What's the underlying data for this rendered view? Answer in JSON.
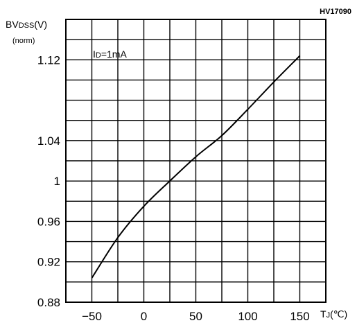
{
  "chart_data": {
    "type": "line",
    "code": "HV17090",
    "ylabel_main": "BV",
    "ylabel_sub": "DSS",
    "ylabel_unit": "(V)",
    "ylabel_norm": "(norm)",
    "xlabel_main": "T",
    "xlabel_sub": "J",
    "xlabel_unit": "(℃)",
    "annotation_main": "I",
    "annotation_sub": "D",
    "annotation_rest": "=1mA",
    "xlim": [
      -75,
      175
    ],
    "ylim": [
      0.88,
      1.16
    ],
    "x_ticks": [
      -50,
      0,
      50,
      100,
      150
    ],
    "x_tick_labels": [
      "−50",
      "0",
      "50",
      "100",
      "150"
    ],
    "y_ticks": [
      0.88,
      0.92,
      0.96,
      1.0,
      1.04,
      1.12
    ],
    "y_tick_labels": [
      "0.88",
      "0.92",
      "0.96",
      "1",
      "1.04",
      "1.12"
    ],
    "grid": true,
    "series": [
      {
        "x": [
          -50,
          -25,
          0,
          25,
          50,
          75,
          100,
          125,
          150
        ],
        "y": [
          0.904,
          0.944,
          0.975,
          1.0,
          1.024,
          1.045,
          1.071,
          1.098,
          1.124
        ]
      }
    ]
  }
}
